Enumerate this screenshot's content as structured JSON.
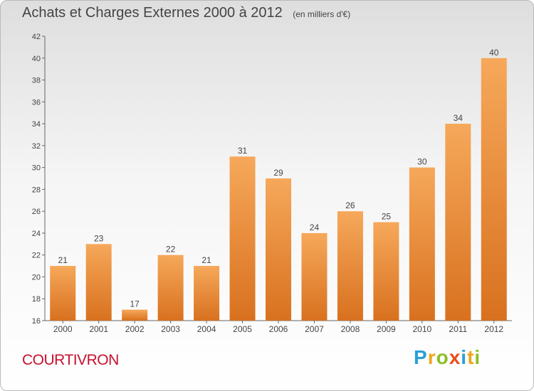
{
  "title": "Achats et Charges Externes 2000 à 2012",
  "unit": "(en milliers d'€)",
  "commune": "COURTIVRON",
  "logo": {
    "letters": [
      {
        "ch": "P",
        "color": "#2a9fd8"
      },
      {
        "ch": "r",
        "color": "#f0a51c"
      },
      {
        "ch": "o",
        "color": "#8cbf26"
      },
      {
        "ch": "x",
        "color": "#e84e1b"
      },
      {
        "ch": "i",
        "color": "#2a9fd8"
      },
      {
        "ch": "t",
        "color": "#f0a51c"
      },
      {
        "ch": "i",
        "color": "#8cbf26"
      }
    ]
  },
  "chart_data": {
    "type": "bar",
    "categories": [
      "2000",
      "2001",
      "2002",
      "2003",
      "2004",
      "2005",
      "2006",
      "2007",
      "2008",
      "2009",
      "2010",
      "2011",
      "2012"
    ],
    "values": [
      21,
      23,
      17,
      22,
      21,
      31,
      29,
      24,
      26,
      25,
      30,
      34,
      40
    ],
    "ylim": [
      16,
      42
    ],
    "yticks": [
      16,
      18,
      20,
      22,
      24,
      26,
      28,
      30,
      32,
      34,
      36,
      38,
      40,
      42
    ],
    "grid": false,
    "bar_color_top": "#f6a85a",
    "bar_color_bottom": "#d8711f",
    "text_color": "#444444"
  }
}
